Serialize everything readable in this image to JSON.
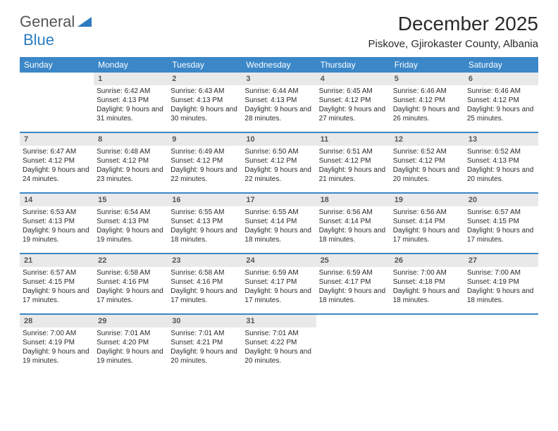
{
  "logo": {
    "general": "General",
    "blue": "Blue"
  },
  "title": "December 2025",
  "location": "Piskove, Gjirokaster County, Albania",
  "colors": {
    "header_bar": "#3b87c8",
    "day_header_bg": "#e9e9e9",
    "text": "#2a2a2a",
    "logo_gray": "#555555",
    "logo_blue": "#2e7cc0",
    "background": "#ffffff"
  },
  "weekdays": [
    "Sunday",
    "Monday",
    "Tuesday",
    "Wednesday",
    "Thursday",
    "Friday",
    "Saturday"
  ],
  "weeks": [
    [
      {
        "n": "",
        "sr": "",
        "ss": "",
        "dl": ""
      },
      {
        "n": "1",
        "sr": "Sunrise: 6:42 AM",
        "ss": "Sunset: 4:13 PM",
        "dl": "Daylight: 9 hours and 31 minutes."
      },
      {
        "n": "2",
        "sr": "Sunrise: 6:43 AM",
        "ss": "Sunset: 4:13 PM",
        "dl": "Daylight: 9 hours and 30 minutes."
      },
      {
        "n": "3",
        "sr": "Sunrise: 6:44 AM",
        "ss": "Sunset: 4:13 PM",
        "dl": "Daylight: 9 hours and 28 minutes."
      },
      {
        "n": "4",
        "sr": "Sunrise: 6:45 AM",
        "ss": "Sunset: 4:12 PM",
        "dl": "Daylight: 9 hours and 27 minutes."
      },
      {
        "n": "5",
        "sr": "Sunrise: 6:46 AM",
        "ss": "Sunset: 4:12 PM",
        "dl": "Daylight: 9 hours and 26 minutes."
      },
      {
        "n": "6",
        "sr": "Sunrise: 6:46 AM",
        "ss": "Sunset: 4:12 PM",
        "dl": "Daylight: 9 hours and 25 minutes."
      }
    ],
    [
      {
        "n": "7",
        "sr": "Sunrise: 6:47 AM",
        "ss": "Sunset: 4:12 PM",
        "dl": "Daylight: 9 hours and 24 minutes."
      },
      {
        "n": "8",
        "sr": "Sunrise: 6:48 AM",
        "ss": "Sunset: 4:12 PM",
        "dl": "Daylight: 9 hours and 23 minutes."
      },
      {
        "n": "9",
        "sr": "Sunrise: 6:49 AM",
        "ss": "Sunset: 4:12 PM",
        "dl": "Daylight: 9 hours and 22 minutes."
      },
      {
        "n": "10",
        "sr": "Sunrise: 6:50 AM",
        "ss": "Sunset: 4:12 PM",
        "dl": "Daylight: 9 hours and 22 minutes."
      },
      {
        "n": "11",
        "sr": "Sunrise: 6:51 AM",
        "ss": "Sunset: 4:12 PM",
        "dl": "Daylight: 9 hours and 21 minutes."
      },
      {
        "n": "12",
        "sr": "Sunrise: 6:52 AM",
        "ss": "Sunset: 4:12 PM",
        "dl": "Daylight: 9 hours and 20 minutes."
      },
      {
        "n": "13",
        "sr": "Sunrise: 6:52 AM",
        "ss": "Sunset: 4:13 PM",
        "dl": "Daylight: 9 hours and 20 minutes."
      }
    ],
    [
      {
        "n": "14",
        "sr": "Sunrise: 6:53 AM",
        "ss": "Sunset: 4:13 PM",
        "dl": "Daylight: 9 hours and 19 minutes."
      },
      {
        "n": "15",
        "sr": "Sunrise: 6:54 AM",
        "ss": "Sunset: 4:13 PM",
        "dl": "Daylight: 9 hours and 19 minutes."
      },
      {
        "n": "16",
        "sr": "Sunrise: 6:55 AM",
        "ss": "Sunset: 4:13 PM",
        "dl": "Daylight: 9 hours and 18 minutes."
      },
      {
        "n": "17",
        "sr": "Sunrise: 6:55 AM",
        "ss": "Sunset: 4:14 PM",
        "dl": "Daylight: 9 hours and 18 minutes."
      },
      {
        "n": "18",
        "sr": "Sunrise: 6:56 AM",
        "ss": "Sunset: 4:14 PM",
        "dl": "Daylight: 9 hours and 18 minutes."
      },
      {
        "n": "19",
        "sr": "Sunrise: 6:56 AM",
        "ss": "Sunset: 4:14 PM",
        "dl": "Daylight: 9 hours and 17 minutes."
      },
      {
        "n": "20",
        "sr": "Sunrise: 6:57 AM",
        "ss": "Sunset: 4:15 PM",
        "dl": "Daylight: 9 hours and 17 minutes."
      }
    ],
    [
      {
        "n": "21",
        "sr": "Sunrise: 6:57 AM",
        "ss": "Sunset: 4:15 PM",
        "dl": "Daylight: 9 hours and 17 minutes."
      },
      {
        "n": "22",
        "sr": "Sunrise: 6:58 AM",
        "ss": "Sunset: 4:16 PM",
        "dl": "Daylight: 9 hours and 17 minutes."
      },
      {
        "n": "23",
        "sr": "Sunrise: 6:58 AM",
        "ss": "Sunset: 4:16 PM",
        "dl": "Daylight: 9 hours and 17 minutes."
      },
      {
        "n": "24",
        "sr": "Sunrise: 6:59 AM",
        "ss": "Sunset: 4:17 PM",
        "dl": "Daylight: 9 hours and 17 minutes."
      },
      {
        "n": "25",
        "sr": "Sunrise: 6:59 AM",
        "ss": "Sunset: 4:17 PM",
        "dl": "Daylight: 9 hours and 18 minutes."
      },
      {
        "n": "26",
        "sr": "Sunrise: 7:00 AM",
        "ss": "Sunset: 4:18 PM",
        "dl": "Daylight: 9 hours and 18 minutes."
      },
      {
        "n": "27",
        "sr": "Sunrise: 7:00 AM",
        "ss": "Sunset: 4:19 PM",
        "dl": "Daylight: 9 hours and 18 minutes."
      }
    ],
    [
      {
        "n": "28",
        "sr": "Sunrise: 7:00 AM",
        "ss": "Sunset: 4:19 PM",
        "dl": "Daylight: 9 hours and 19 minutes."
      },
      {
        "n": "29",
        "sr": "Sunrise: 7:01 AM",
        "ss": "Sunset: 4:20 PM",
        "dl": "Daylight: 9 hours and 19 minutes."
      },
      {
        "n": "30",
        "sr": "Sunrise: 7:01 AM",
        "ss": "Sunset: 4:21 PM",
        "dl": "Daylight: 9 hours and 20 minutes."
      },
      {
        "n": "31",
        "sr": "Sunrise: 7:01 AM",
        "ss": "Sunset: 4:22 PM",
        "dl": "Daylight: 9 hours and 20 minutes."
      },
      {
        "n": "",
        "sr": "",
        "ss": "",
        "dl": ""
      },
      {
        "n": "",
        "sr": "",
        "ss": "",
        "dl": ""
      },
      {
        "n": "",
        "sr": "",
        "ss": "",
        "dl": ""
      }
    ]
  ]
}
